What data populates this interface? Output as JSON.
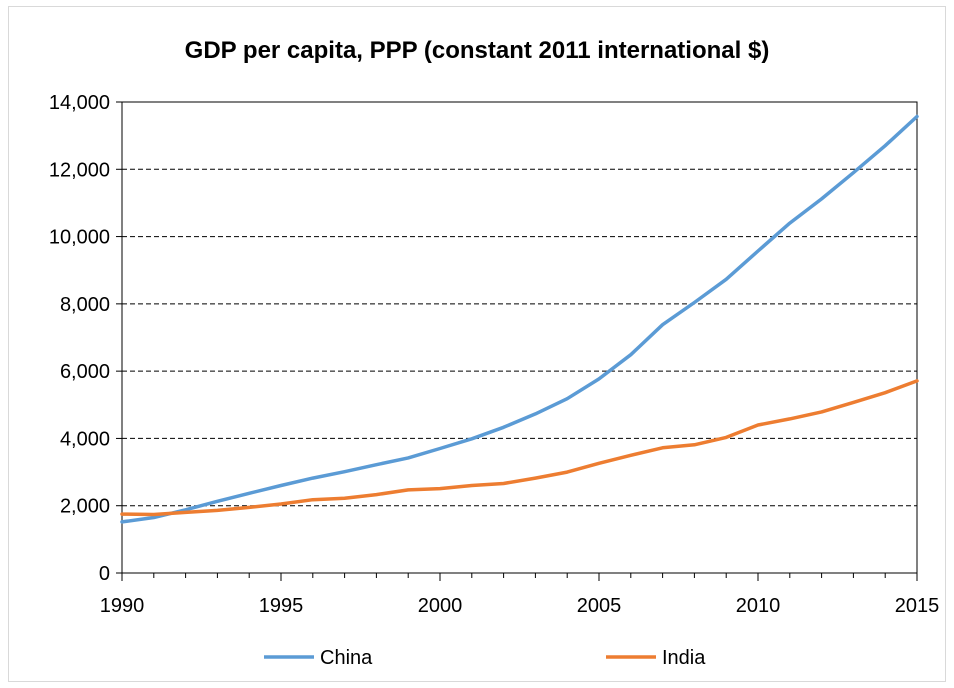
{
  "chart_data": {
    "type": "line",
    "title": "GDP per capita, PPP (constant 2011 international $)",
    "xlabel": "",
    "ylabel": "",
    "x": [
      1990,
      1991,
      1992,
      1993,
      1994,
      1995,
      1996,
      1997,
      1998,
      1999,
      2000,
      2001,
      2002,
      2003,
      2004,
      2005,
      2006,
      2007,
      2008,
      2009,
      2010,
      2011,
      2012,
      2013,
      2014,
      2015
    ],
    "xlim": [
      1990,
      2015
    ],
    "ylim": [
      0,
      14000
    ],
    "x_ticks": [
      1990,
      1995,
      2000,
      2005,
      2010,
      2015
    ],
    "x_tick_labels": [
      "1990",
      "1995",
      "2000",
      "2005",
      "2010",
      "2015"
    ],
    "y_ticks": [
      0,
      2000,
      4000,
      6000,
      8000,
      10000,
      12000,
      14000
    ],
    "y_tick_labels": [
      "0",
      "2,000",
      "4,000",
      "6,000",
      "8,000",
      "10,000",
      "12,000",
      "14,000"
    ],
    "grid": "horizontal dashed",
    "legend_position": "bottom",
    "series": [
      {
        "name": "China",
        "color": "#5b9bd5",
        "values": [
          1520,
          1650,
          1880,
          2130,
          2370,
          2600,
          2820,
          3010,
          3220,
          3420,
          3700,
          3990,
          4330,
          4730,
          5180,
          5770,
          6490,
          7380,
          8040,
          8730,
          9570,
          10400,
          11120,
          11900,
          12700,
          13570
        ]
      },
      {
        "name": "India",
        "color": "#ed7d31",
        "values": [
          1750,
          1740,
          1800,
          1860,
          1950,
          2050,
          2180,
          2220,
          2330,
          2470,
          2510,
          2600,
          2660,
          2820,
          3000,
          3260,
          3500,
          3720,
          3810,
          4030,
          4400,
          4580,
          4790,
          5070,
          5360,
          5710
        ]
      }
    ]
  }
}
